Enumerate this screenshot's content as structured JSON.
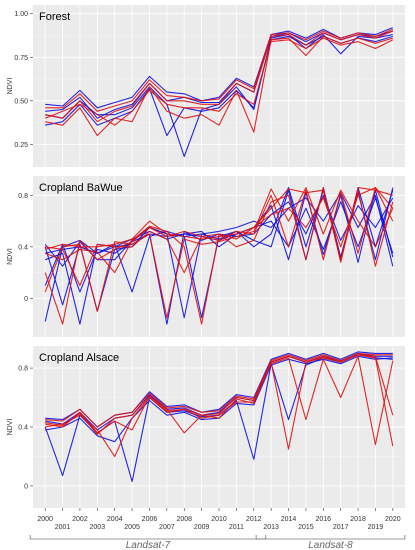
{
  "figure": {
    "x_ticks": [
      "2000",
      "2001",
      "2002",
      "2003",
      "2004",
      "2005",
      "2006",
      "2007",
      "2008",
      "2009",
      "2010",
      "2011",
      "2012",
      "2013",
      "2014",
      "2015",
      "2016",
      "2017",
      "2018",
      "2019",
      "2020"
    ],
    "sensors": [
      {
        "label": "Landsat-7",
        "from": 2000,
        "to": 2012
      },
      {
        "label": "Landsat-8",
        "from": 2013,
        "to": 2020
      }
    ],
    "colors": {
      "series_a": "#1010e0",
      "series_b": "#e01010",
      "panel_bg": "#ebebeb",
      "grid": "#ffffff"
    }
  },
  "chart_data": [
    {
      "type": "line",
      "title": "Forest",
      "ylabel": "NDVI",
      "ylim": [
        0.12,
        1.05
      ],
      "yticks": [
        0.25,
        0.5,
        0.75,
        1.0
      ],
      "ytick_labels": [
        "0.25",
        "0.50",
        "0.75",
        "1.00"
      ],
      "x": [
        2000,
        2001,
        2002,
        2003,
        2004,
        2005,
        2006,
        2007,
        2008,
        2009,
        2010,
        2011,
        2012,
        2013,
        2014,
        2015,
        2016,
        2017,
        2018,
        2019,
        2020
      ],
      "series_groups": [
        {
          "color": "blue",
          "values": [
            [
              0.48,
              0.47,
              0.56,
              0.46,
              0.49,
              0.52,
              0.64,
              0.55,
              0.54,
              0.5,
              0.52,
              0.63,
              0.58,
              0.88,
              0.9,
              0.86,
              0.91,
              0.86,
              0.89,
              0.88,
              0.92
            ],
            [
              0.44,
              0.45,
              0.52,
              0.4,
              0.45,
              0.48,
              0.6,
              0.5,
              0.52,
              0.49,
              0.49,
              0.6,
              0.55,
              0.87,
              0.89,
              0.84,
              0.89,
              0.85,
              0.88,
              0.87,
              0.9
            ],
            [
              0.42,
              0.4,
              0.5,
              0.42,
              0.42,
              0.46,
              0.58,
              0.48,
              0.18,
              0.45,
              0.48,
              0.58,
              0.45,
              0.86,
              0.88,
              0.8,
              0.88,
              0.77,
              0.87,
              0.86,
              0.88
            ],
            [
              0.36,
              0.38,
              0.48,
              0.36,
              0.4,
              0.44,
              0.57,
              0.3,
              0.46,
              0.44,
              0.46,
              0.56,
              0.46,
              0.85,
              0.87,
              0.82,
              0.87,
              0.83,
              0.86,
              0.84,
              0.87
            ]
          ]
        },
        {
          "color": "red",
          "values": [
            [
              0.46,
              0.46,
              0.54,
              0.44,
              0.47,
              0.5,
              0.62,
              0.53,
              0.52,
              0.5,
              0.51,
              0.62,
              0.57,
              0.88,
              0.89,
              0.85,
              0.9,
              0.86,
              0.89,
              0.87,
              0.91
            ],
            [
              0.42,
              0.4,
              0.5,
              0.38,
              0.44,
              0.47,
              0.6,
              0.5,
              0.5,
              0.48,
              0.48,
              0.6,
              0.55,
              0.87,
              0.88,
              0.82,
              0.89,
              0.85,
              0.88,
              0.86,
              0.9
            ],
            [
              0.38,
              0.36,
              0.46,
              0.3,
              0.4,
              0.38,
              0.58,
              0.44,
              0.4,
              0.42,
              0.36,
              0.56,
              0.32,
              0.85,
              0.86,
              0.76,
              0.87,
              0.83,
              0.86,
              0.83,
              0.86
            ],
            [
              0.4,
              0.44,
              0.48,
              0.42,
              0.36,
              0.44,
              0.56,
              0.48,
              0.46,
              0.46,
              0.44,
              0.54,
              0.48,
              0.84,
              0.85,
              0.8,
              0.86,
              0.82,
              0.84,
              0.8,
              0.85
            ]
          ]
        }
      ]
    },
    {
      "type": "line",
      "title": "Cropland BaWue",
      "ylabel": "NDVI",
      "ylim": [
        -0.3,
        0.95
      ],
      "yticks": [
        0.0,
        0.4,
        0.8
      ],
      "ytick_labels": [
        "0",
        "0.4",
        "0.8"
      ],
      "x": [
        2000,
        2001,
        2002,
        2003,
        2004,
        2005,
        2006,
        2007,
        2008,
        2009,
        2010,
        2011,
        2012,
        2013,
        2014,
        2015,
        2016,
        2017,
        2018,
        2019,
        2020
      ],
      "series_groups": [
        {
          "color": "blue",
          "values": [
            [
              -0.18,
              0.4,
              0.45,
              0.35,
              0.4,
              0.46,
              0.52,
              0.46,
              0.5,
              0.48,
              0.45,
              0.5,
              0.55,
              0.72,
              0.3,
              0.82,
              0.34,
              0.8,
              0.28,
              0.84,
              0.32
            ],
            [
              0.4,
              -0.05,
              0.42,
              -0.1,
              0.38,
              0.4,
              0.55,
              0.5,
              -0.15,
              0.5,
              0.46,
              0.52,
              0.45,
              0.4,
              0.84,
              0.3,
              0.86,
              0.32,
              0.82,
              0.3,
              0.86
            ],
            [
              0.1,
              0.42,
              0.05,
              0.38,
              0.35,
              0.44,
              0.5,
              -0.2,
              0.52,
              0.45,
              0.5,
              0.48,
              0.5,
              0.65,
              0.75,
              0.5,
              0.8,
              0.45,
              0.72,
              0.55,
              0.78
            ],
            [
              0.35,
              0.38,
              0.4,
              0.35,
              0.42,
              0.05,
              0.48,
              0.52,
              0.48,
              -0.15,
              0.48,
              0.52,
              0.4,
              0.5,
              0.86,
              0.4,
              0.84,
              0.3,
              0.86,
              0.4,
              0.84
            ],
            [
              0.42,
              0.25,
              0.44,
              0.3,
              0.3,
              0.45,
              0.55,
              0.5,
              0.48,
              0.5,
              0.52,
              0.55,
              0.6,
              0.55,
              0.7,
              0.78,
              0.6,
              0.82,
              0.55,
              0.8,
              0.25
            ],
            [
              0.3,
              0.35,
              -0.2,
              0.42,
              0.4,
              0.42,
              0.5,
              0.48,
              0.5,
              0.52,
              0.4,
              0.5,
              0.55,
              0.6,
              0.4,
              0.7,
              0.38,
              0.75,
              0.4,
              0.78,
              0.35
            ]
          ]
        },
        {
          "color": "red",
          "values": [
            [
              0.38,
              0.42,
              0.4,
              0.4,
              0.42,
              0.46,
              0.6,
              0.5,
              0.48,
              0.46,
              0.48,
              0.5,
              0.55,
              0.7,
              0.85,
              0.82,
              0.84,
              0.3,
              0.86,
              0.84,
              0.8
            ],
            [
              0.2,
              -0.2,
              0.45,
              0.3,
              0.38,
              0.44,
              0.55,
              0.48,
              0.52,
              0.48,
              0.45,
              0.52,
              0.5,
              0.8,
              0.4,
              0.84,
              0.3,
              0.82,
              0.35,
              0.86,
              0.7
            ],
            [
              0.4,
              0.38,
              0.1,
              0.42,
              0.4,
              0.4,
              0.52,
              0.46,
              0.2,
              0.48,
              0.5,
              0.4,
              0.45,
              0.75,
              0.8,
              0.3,
              0.86,
              0.28,
              0.84,
              0.25,
              0.75
            ],
            [
              0.05,
              0.4,
              0.42,
              -0.1,
              0.44,
              0.42,
              0.5,
              -0.15,
              0.46,
              0.42,
              0.44,
              0.48,
              0.52,
              0.85,
              0.6,
              0.86,
              0.5,
              0.84,
              0.6,
              0.4,
              0.7
            ],
            [
              0.35,
              0.3,
              0.38,
              0.36,
              0.2,
              0.45,
              0.56,
              0.52,
              0.4,
              -0.2,
              0.5,
              0.46,
              0.55,
              0.65,
              0.7,
              0.55,
              0.78,
              0.4,
              0.8,
              0.86,
              0.6
            ]
          ]
        }
      ]
    },
    {
      "type": "line",
      "title": "Cropland Alsace",
      "ylabel": "NDVI",
      "ylim": [
        -0.15,
        0.95
      ],
      "yticks": [
        0.0,
        0.4,
        0.8
      ],
      "ytick_labels": [
        "0",
        "0.4",
        "0.8"
      ],
      "x": [
        2000,
        2001,
        2002,
        2003,
        2004,
        2005,
        2006,
        2007,
        2008,
        2009,
        2010,
        2011,
        2012,
        2013,
        2014,
        2015,
        2016,
        2017,
        2018,
        2019,
        2020
      ],
      "series_groups": [
        {
          "color": "blue",
          "values": [
            [
              0.46,
              0.45,
              0.52,
              0.4,
              0.48,
              0.5,
              0.64,
              0.54,
              0.55,
              0.5,
              0.52,
              0.62,
              0.6,
              0.86,
              0.9,
              0.86,
              0.9,
              0.86,
              0.91,
              0.9,
              0.9
            ],
            [
              0.44,
              0.42,
              0.5,
              0.38,
              0.46,
              0.48,
              0.62,
              0.52,
              0.53,
              0.48,
              0.5,
              0.6,
              0.58,
              0.84,
              0.88,
              0.84,
              0.88,
              0.85,
              0.9,
              0.88,
              0.88
            ],
            [
              0.4,
              0.07,
              0.48,
              0.36,
              0.44,
              0.03,
              0.6,
              0.5,
              0.51,
              0.47,
              0.48,
              0.58,
              0.18,
              0.83,
              0.45,
              0.82,
              0.87,
              0.84,
              0.89,
              0.87,
              0.86
            ],
            [
              0.38,
              0.4,
              0.46,
              0.34,
              0.3,
              0.46,
              0.58,
              0.48,
              0.5,
              0.45,
              0.46,
              0.56,
              0.55,
              0.82,
              0.86,
              0.83,
              0.86,
              0.83,
              0.88,
              0.86,
              0.87
            ]
          ]
        },
        {
          "color": "red",
          "values": [
            [
              0.45,
              0.44,
              0.52,
              0.4,
              0.48,
              0.5,
              0.63,
              0.53,
              0.54,
              0.5,
              0.51,
              0.61,
              0.59,
              0.85,
              0.89,
              0.85,
              0.89,
              0.85,
              0.9,
              0.89,
              0.89
            ],
            [
              0.42,
              0.4,
              0.5,
              0.36,
              0.44,
              0.38,
              0.61,
              0.52,
              0.36,
              0.48,
              0.46,
              0.59,
              0.56,
              0.84,
              0.25,
              0.84,
              0.87,
              0.84,
              0.89,
              0.88,
              0.48
            ],
            [
              0.4,
              0.42,
              0.48,
              0.38,
              0.2,
              0.46,
              0.6,
              0.5,
              0.52,
              0.46,
              0.48,
              0.57,
              0.57,
              0.83,
              0.87,
              0.45,
              0.86,
              0.6,
              0.88,
              0.28,
              0.85
            ],
            [
              0.43,
              0.41,
              0.49,
              0.35,
              0.46,
              0.48,
              0.61,
              0.51,
              0.52,
              0.48,
              0.49,
              0.6,
              0.58,
              0.84,
              0.88,
              0.84,
              0.88,
              0.84,
              0.89,
              0.87,
              0.27
            ]
          ]
        }
      ]
    }
  ]
}
